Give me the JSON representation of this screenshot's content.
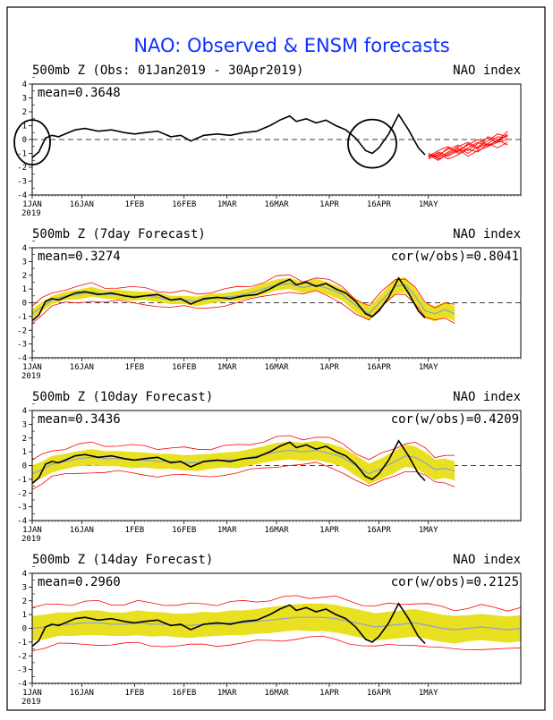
{
  "title": "NAO: Observed & ENSM forecasts",
  "colors": {
    "title": "#1030ff",
    "observed": "#000000",
    "member": "#ff0000",
    "spread": "#e8e020",
    "mean": "#8fa0d8",
    "grid": "#000000"
  },
  "x_ticks": [
    "1JAN",
    "16JAN",
    "1FEB",
    "16FEB",
    "1MAR",
    "16MAR",
    "1APR",
    "16APR",
    "1MAY"
  ],
  "x_tick_days": [
    0,
    15,
    31,
    46,
    59,
    74,
    90,
    105,
    120
  ],
  "year_label": "2019",
  "y_ticks": [
    "4",
    "3",
    "2",
    "1",
    "0",
    "-1",
    "-2",
    "-3",
    "-4"
  ],
  "panels": [
    {
      "heading": "500mb Z (Obs: 01Jan2019 - 30Apr2019)",
      "index_label": "NAO index",
      "mean_label": "mean=0.3648",
      "cor_label": ""
    },
    {
      "heading": "500mb Z (7day Forecast)",
      "index_label": "NAO index",
      "mean_label": "mean=0.3274",
      "cor_label": "cor(w/obs)=0.8041"
    },
    {
      "heading": "500mb Z (10day Forecast)",
      "index_label": "NAO index",
      "mean_label": "mean=0.3436",
      "cor_label": "cor(w/obs)=0.4209"
    },
    {
      "heading": "500mb Z (14day Forecast)",
      "index_label": "NAO index",
      "mean_label": "mean=0.2960",
      "cor_label": "cor(w/obs)=0.2125"
    }
  ],
  "chart_data": {
    "type": "line",
    "title": "NAO: Observed & ENSM forecasts",
    "x_unit": "days since 1 Jan 2019",
    "xlim": [
      0,
      148
    ],
    "ylim": [
      -4,
      4
    ],
    "observed": {
      "name": "Observed NAO index",
      "x": [
        0,
        2,
        4,
        6,
        8,
        10,
        13,
        16,
        20,
        24,
        28,
        31,
        34,
        38,
        42,
        45,
        48,
        52,
        56,
        60,
        64,
        68,
        72,
        75,
        78,
        80,
        83,
        86,
        89,
        92,
        95,
        98,
        101,
        103,
        105,
        108,
        111,
        114,
        117,
        119
      ],
      "y": [
        -1.3,
        -0.9,
        0.1,
        0.3,
        0.2,
        0.4,
        0.7,
        0.8,
        0.6,
        0.7,
        0.5,
        0.4,
        0.5,
        0.6,
        0.2,
        0.3,
        -0.1,
        0.3,
        0.4,
        0.3,
        0.5,
        0.6,
        1.0,
        1.4,
        1.7,
        1.3,
        1.5,
        1.2,
        1.4,
        1.0,
        0.7,
        0.1,
        -0.8,
        -1.0,
        -0.6,
        0.4,
        1.8,
        0.7,
        -0.6,
        -1.1
      ]
    },
    "members_start_day": 120,
    "members": [
      [
        -1.2,
        -0.8,
        -0.5,
        -1.0,
        -0.6,
        -0.2,
        -0.5,
        0.0,
        0.3
      ],
      [
        -1.3,
        -1.1,
        -0.7,
        -0.4,
        -0.8,
        -0.3,
        0.1,
        -0.2,
        0.4
      ],
      [
        -1.0,
        -1.3,
        -0.9,
        -0.5,
        -0.2,
        -0.6,
        -0.3,
        0.2,
        0.1
      ],
      [
        -1.4,
        -0.9,
        -1.2,
        -0.8,
        -0.4,
        0.0,
        -0.4,
        -0.1,
        0.6
      ],
      [
        -1.1,
        -1.5,
        -1.0,
        -0.6,
        -1.0,
        -0.5,
        -0.1,
        0.4,
        0.2
      ],
      [
        -1.2,
        -1.0,
        -1.4,
        -1.1,
        -0.7,
        -0.9,
        -0.3,
        -0.6,
        -0.2
      ],
      [
        -1.3,
        -1.2,
        -0.6,
        -0.9,
        -0.3,
        -0.7,
        0.2,
        0.0,
        -0.4
      ],
      [
        -1.0,
        -1.4,
        -1.1,
        -0.7,
        -1.2,
        -0.8,
        -0.5,
        -0.2,
        0.0
      ]
    ],
    "forecasts": [
      {
        "lead": "7day",
        "x": [
          0,
          3,
          6,
          10,
          14,
          18,
          22,
          26,
          30,
          34,
          38,
          42,
          46,
          50,
          54,
          58,
          62,
          66,
          70,
          74,
          78,
          82,
          86,
          90,
          94,
          98,
          102,
          106,
          110,
          113,
          116,
          119,
          122,
          125,
          128
        ],
        "mean": [
          -0.8,
          -0.3,
          0.2,
          0.5,
          0.6,
          0.8,
          0.6,
          0.6,
          0.5,
          0.5,
          0.4,
          0.2,
          0.2,
          0.1,
          0.3,
          0.4,
          0.5,
          0.7,
          1.0,
          1.3,
          1.4,
          1.1,
          1.3,
          1.0,
          0.6,
          -0.2,
          -0.8,
          0.2,
          1.2,
          1.3,
          0.5,
          -0.6,
          -0.8,
          -0.5,
          -0.8
        ],
        "spread": [
          0.35,
          0.35,
          0.3,
          0.3,
          0.35,
          0.35,
          0.3,
          0.35,
          0.35,
          0.3,
          0.35,
          0.3,
          0.3,
          0.35,
          0.35,
          0.3,
          0.35,
          0.35,
          0.4,
          0.4,
          0.4,
          0.4,
          0.45,
          0.45,
          0.45,
          0.5,
          0.5,
          0.5,
          0.55,
          0.55,
          0.55,
          0.55,
          0.55,
          0.55,
          0.55
        ],
        "envelope": 0.55
      },
      {
        "lead": "10day",
        "x": [
          0,
          3,
          6,
          10,
          14,
          18,
          22,
          26,
          30,
          34,
          38,
          42,
          46,
          50,
          54,
          58,
          62,
          66,
          70,
          74,
          78,
          82,
          86,
          90,
          94,
          98,
          102,
          106,
          110,
          113,
          116,
          119,
          122,
          125,
          128
        ],
        "mean": [
          -0.6,
          -0.3,
          0.1,
          0.3,
          0.5,
          0.6,
          0.5,
          0.5,
          0.4,
          0.4,
          0.3,
          0.3,
          0.2,
          0.2,
          0.3,
          0.4,
          0.4,
          0.6,
          0.8,
          1.0,
          1.1,
          1.0,
          1.1,
          0.9,
          0.6,
          0.0,
          -0.6,
          -0.2,
          0.3,
          0.7,
          0.6,
          0.2,
          -0.3,
          -0.2,
          -0.4
        ],
        "spread": [
          0.6,
          0.6,
          0.6,
          0.55,
          0.55,
          0.6,
          0.55,
          0.55,
          0.6,
          0.55,
          0.55,
          0.55,
          0.55,
          0.6,
          0.55,
          0.55,
          0.6,
          0.6,
          0.6,
          0.65,
          0.65,
          0.65,
          0.7,
          0.7,
          0.7,
          0.75,
          0.75,
          0.75,
          0.8,
          0.8,
          0.8,
          0.8,
          0.75,
          0.7,
          0.7
        ],
        "envelope": 1.0
      },
      {
        "lead": "14day",
        "x": [
          0,
          4,
          8,
          12,
          16,
          20,
          24,
          28,
          32,
          36,
          40,
          44,
          48,
          52,
          56,
          60,
          64,
          68,
          72,
          76,
          80,
          84,
          88,
          92,
          96,
          100,
          104,
          108,
          112,
          116,
          120,
          124,
          128,
          132,
          136,
          140,
          144,
          148
        ],
        "mean": [
          0.0,
          0.1,
          0.3,
          0.3,
          0.4,
          0.4,
          0.3,
          0.3,
          0.4,
          0.3,
          0.3,
          0.2,
          0.2,
          0.3,
          0.3,
          0.4,
          0.4,
          0.5,
          0.6,
          0.7,
          0.8,
          0.8,
          0.8,
          0.7,
          0.5,
          0.3,
          0.1,
          0.2,
          0.3,
          0.4,
          0.2,
          0.0,
          -0.1,
          0.0,
          0.1,
          0.0,
          -0.1,
          0.0
        ],
        "spread": [
          0.9,
          0.9,
          0.85,
          0.85,
          0.9,
          0.9,
          0.85,
          0.85,
          0.9,
          0.9,
          0.85,
          0.85,
          0.9,
          0.9,
          0.85,
          0.9,
          0.9,
          0.9,
          0.95,
          0.95,
          0.95,
          1.0,
          1.0,
          1.0,
          1.0,
          1.0,
          1.0,
          1.0,
          1.0,
          1.0,
          1.0,
          1.0,
          1.0,
          0.95,
          0.95,
          0.95,
          0.95,
          0.95
        ],
        "envelope": 1.5
      }
    ]
  }
}
